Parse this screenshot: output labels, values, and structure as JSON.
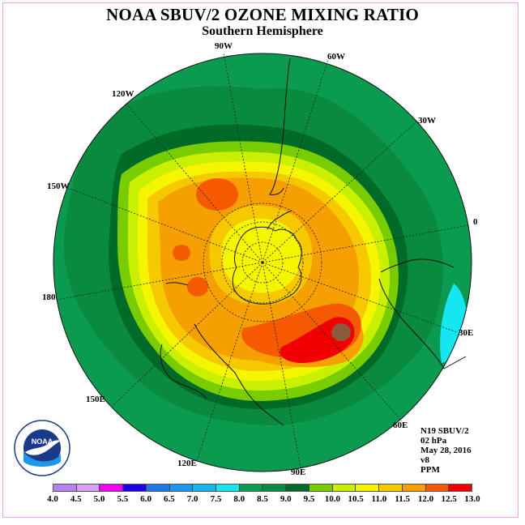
{
  "header": {
    "title": "NOAA SBUV/2 OZONE MIXING RATIO",
    "subtitle": "Southern Hemisphere"
  },
  "longitude_labels": {
    "w90": "90W",
    "w60": "60W",
    "w30": "30W",
    "zero": "0",
    "e30": "30E",
    "e60": "60E",
    "e90": "90E",
    "e120": "120E",
    "e150": "150E",
    "lon180": "180",
    "w150": "150W",
    "w120": "120W"
  },
  "info": {
    "satellite": "N19 SBUV/2",
    "level": "02 hPa",
    "date": "May 28, 2016",
    "version": "v8",
    "units": "PPM"
  },
  "colorbar": {
    "ticks": [
      "4.0",
      "4.5",
      "5.0",
      "5.5",
      "6.0",
      "6.5",
      "7.0",
      "7.5",
      "8.0",
      "8.5",
      "9.0",
      "9.5",
      "10.0",
      "10.5",
      "11.0",
      "11.5",
      "12.0",
      "12.5",
      "13.0"
    ],
    "colors": [
      "#b780f5",
      "#d9a0f5",
      "#f000f0",
      "#2000e6",
      "#1e78e6",
      "#1e96eb",
      "#18b4f0",
      "#16e6f0",
      "#0a9b50",
      "#098a3e",
      "#006b28",
      "#78cc00",
      "#c8f000",
      "#f5f500",
      "#f5c800",
      "#f5a000",
      "#f55a00",
      "#f00000",
      "#8b5a3c"
    ]
  },
  "logo": {
    "text": "NOAA",
    "ring_text": "NATIONAL OCEANIC AND ATMOSPHERIC ADMINISTRATION",
    "bottom_text": "U.S. DEPARTMENT OF COMMERCE"
  }
}
